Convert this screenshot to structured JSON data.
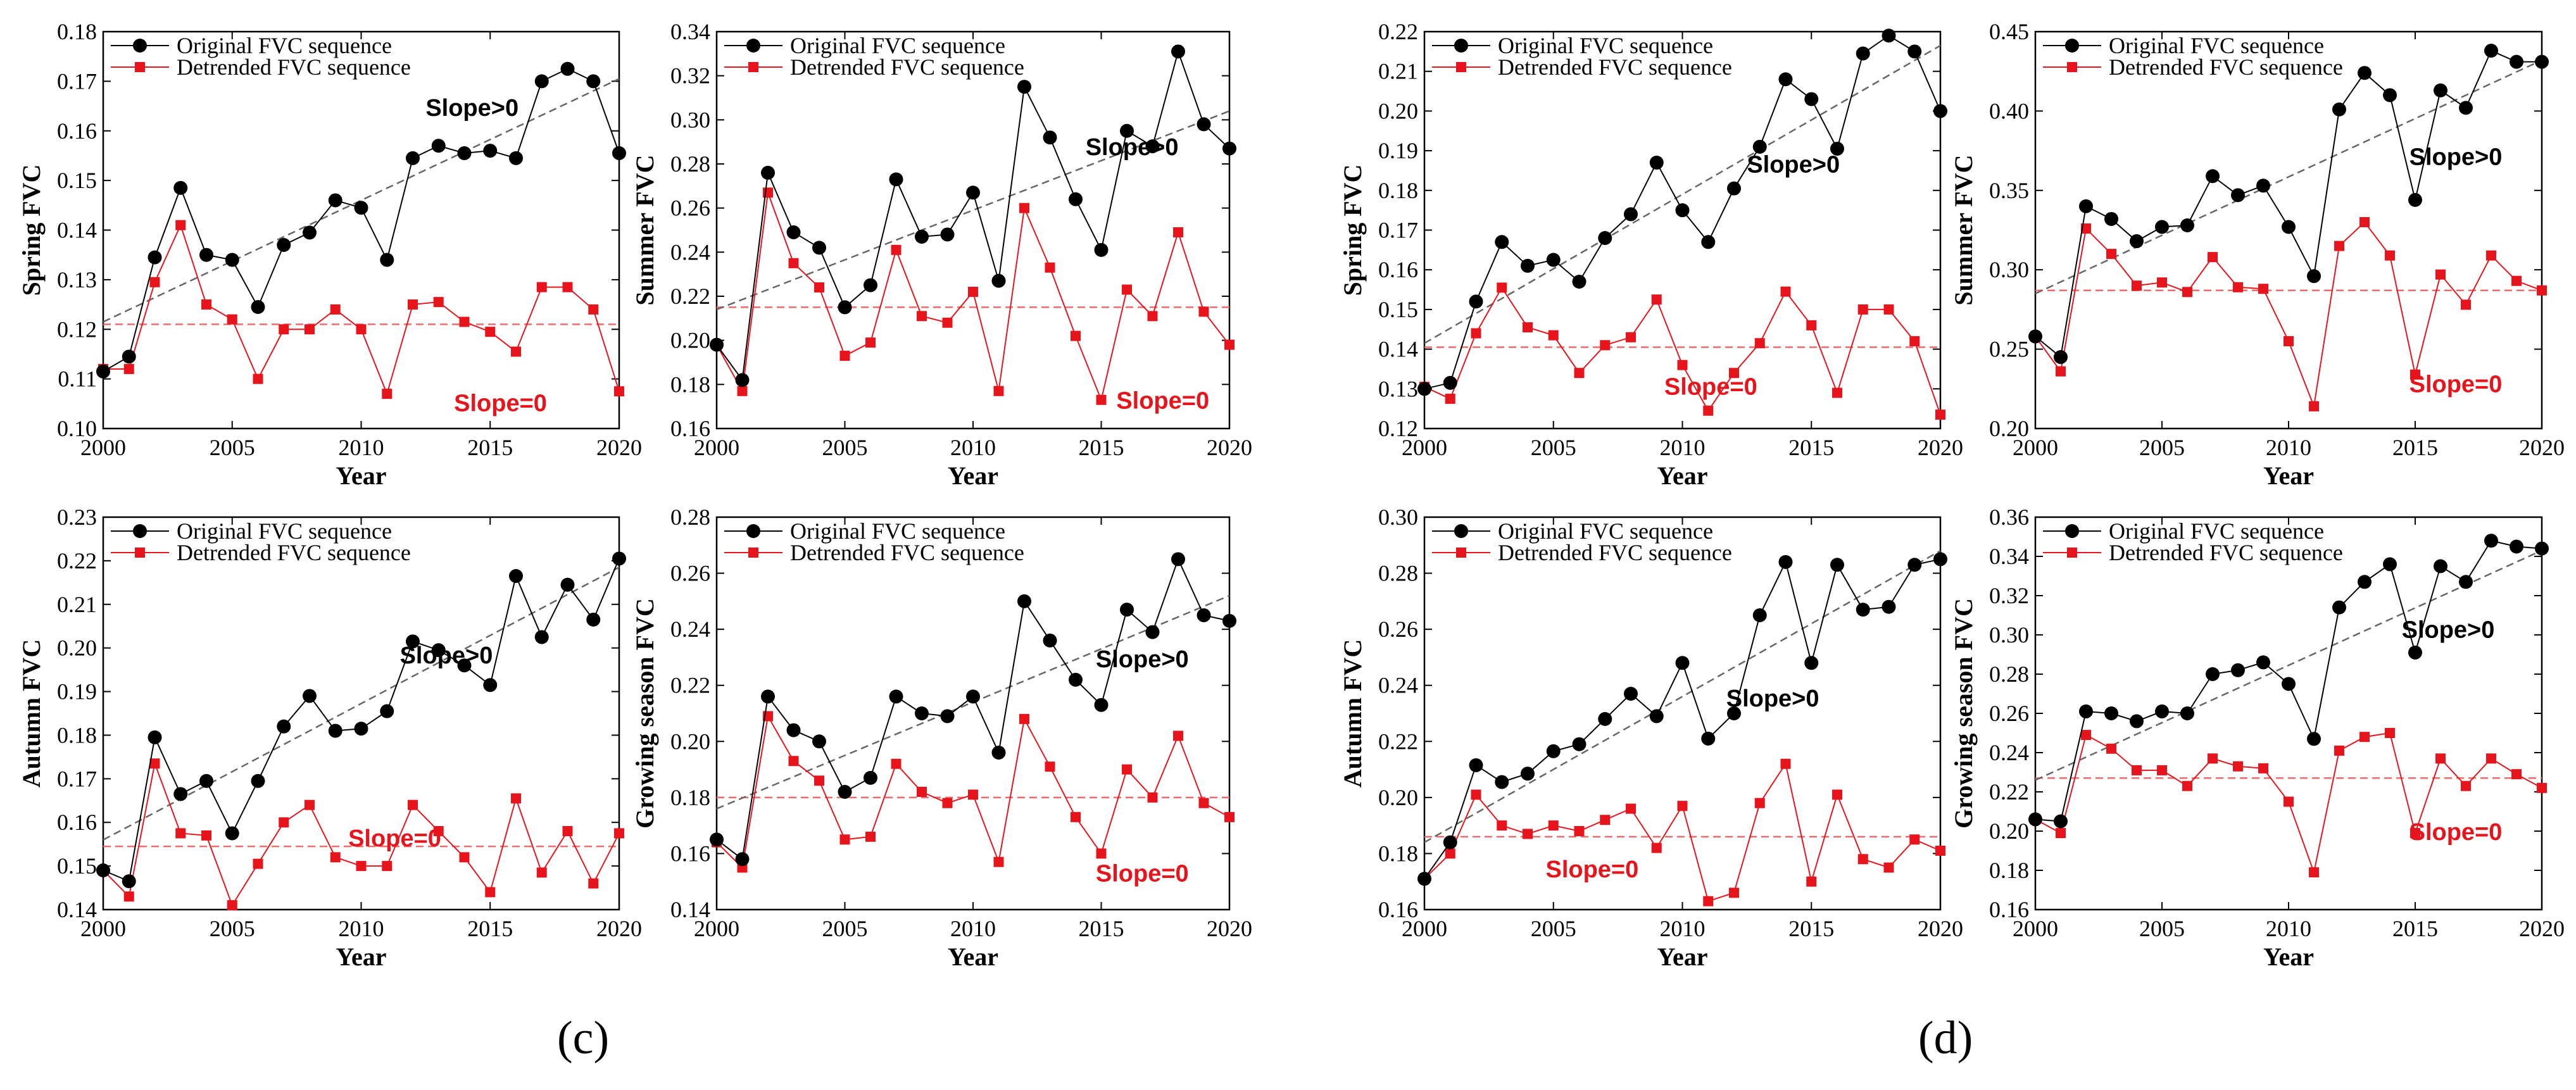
{
  "legend": {
    "original": "Original FVC sequence",
    "detrended": "Detrended FVC sequence"
  },
  "colors": {
    "original": "#000000",
    "detrended": "#e8141b",
    "trend_original": "#666666",
    "trend_detrended": "#ef6b6b"
  },
  "panel_labels": {
    "c": "(c)",
    "d": "(d)"
  },
  "chart_data": [
    {
      "id": "c-spring",
      "type": "line",
      "xlabel": "Year",
      "ylabel": "Spring FVC",
      "xlim": [
        2000,
        2020
      ],
      "ylim": [
        0.1,
        0.18
      ],
      "xticks": [
        2000,
        2005,
        2010,
        2015,
        2020
      ],
      "yticks": [
        "0.10",
        "0.11",
        "0.12",
        "0.13",
        "0.14",
        "0.15",
        "0.16",
        "0.17",
        "0.18"
      ],
      "x": [
        2000,
        2001,
        2002,
        2003,
        2004,
        2005,
        2006,
        2007,
        2008,
        2009,
        2010,
        2011,
        2012,
        2013,
        2014,
        2015,
        2016,
        2017,
        2018,
        2019,
        2020
      ],
      "series": [
        {
          "key": "original",
          "values": [
            0.1115,
            0.1145,
            0.1345,
            0.1485,
            0.135,
            0.134,
            0.1245,
            0.137,
            0.1395,
            0.146,
            0.1445,
            0.134,
            0.1545,
            0.157,
            0.1555,
            0.156,
            0.1545,
            0.17,
            0.1725,
            0.17,
            0.1555
          ]
        },
        {
          "key": "detrended",
          "values": [
            0.112,
            0.112,
            0.1295,
            0.141,
            0.125,
            0.122,
            0.11,
            0.12,
            0.12,
            0.124,
            0.12,
            0.107,
            0.125,
            0.1255,
            0.1215,
            0.1195,
            0.1155,
            0.1285,
            0.1285,
            0.124,
            0.1075
          ]
        }
      ],
      "trend_original": [
        0.1215,
        0.1705
      ],
      "trend_detrended": [
        0.121,
        0.121
      ],
      "annotations": [
        {
          "text": "Slope>0",
          "x": 2014.3,
          "y": 0.163,
          "color": "#000000"
        },
        {
          "text": "Slope=0",
          "x": 2015.4,
          "y": 0.1035,
          "color": "#e8141b"
        }
      ]
    },
    {
      "id": "c-summer",
      "type": "line",
      "xlabel": "Year",
      "ylabel": "Summer FVC",
      "xlim": [
        2000,
        2020
      ],
      "ylim": [
        0.16,
        0.34
      ],
      "xticks": [
        2000,
        2005,
        2010,
        2015,
        2020
      ],
      "yticks": [
        "0.16",
        "0.18",
        "0.20",
        "0.22",
        "0.24",
        "0.26",
        "0.28",
        "0.30",
        "0.32",
        "0.34"
      ],
      "x": [
        2000,
        2001,
        2002,
        2003,
        2004,
        2005,
        2006,
        2007,
        2008,
        2009,
        2010,
        2011,
        2012,
        2013,
        2014,
        2015,
        2016,
        2017,
        2018,
        2019,
        2020
      ],
      "series": [
        {
          "key": "original",
          "values": [
            0.198,
            0.182,
            0.276,
            0.249,
            0.242,
            0.215,
            0.225,
            0.273,
            0.247,
            0.248,
            0.267,
            0.227,
            0.315,
            0.292,
            0.264,
            0.241,
            0.295,
            0.288,
            0.331,
            0.298,
            0.287
          ]
        },
        {
          "key": "detrended",
          "values": [
            0.198,
            0.177,
            0.267,
            0.235,
            0.224,
            0.193,
            0.199,
            0.241,
            0.211,
            0.208,
            0.222,
            0.177,
            0.26,
            0.233,
            0.202,
            0.173,
            0.223,
            0.211,
            0.249,
            0.213,
            0.198
          ]
        }
      ],
      "trend_original": [
        0.214,
        0.304
      ],
      "trend_detrended": [
        0.215,
        0.215
      ],
      "annotations": [
        {
          "text": "Slope>0",
          "x": 2016.2,
          "y": 0.284,
          "color": "#000000"
        },
        {
          "text": "Slope=0",
          "x": 2017.4,
          "y": 0.169,
          "color": "#e8141b"
        }
      ]
    },
    {
      "id": "c-autumn",
      "type": "line",
      "xlabel": "Year",
      "ylabel": "Autumn FVC",
      "xlim": [
        2000,
        2020
      ],
      "ylim": [
        0.14,
        0.23
      ],
      "xticks": [
        2000,
        2005,
        2010,
        2015,
        2020
      ],
      "yticks": [
        "0.14",
        "0.15",
        "0.16",
        "0.17",
        "0.18",
        "0.19",
        "0.20",
        "0.21",
        "0.22",
        "0.23"
      ],
      "x": [
        2000,
        2001,
        2002,
        2003,
        2004,
        2005,
        2006,
        2007,
        2008,
        2009,
        2010,
        2011,
        2012,
        2013,
        2014,
        2015,
        2016,
        2017,
        2018,
        2019,
        2020
      ],
      "series": [
        {
          "key": "original",
          "values": [
            0.149,
            0.1465,
            0.1795,
            0.1665,
            0.1695,
            0.1575,
            0.1695,
            0.182,
            0.189,
            0.181,
            0.1815,
            0.1855,
            0.2015,
            0.1995,
            0.196,
            0.1915,
            0.2165,
            0.2025,
            0.2145,
            0.2065,
            0.2205
          ]
        },
        {
          "key": "detrended",
          "values": [
            0.149,
            0.143,
            0.1735,
            0.1575,
            0.157,
            0.141,
            0.1505,
            0.16,
            0.164,
            0.152,
            0.15,
            0.15,
            0.164,
            0.158,
            0.152,
            0.144,
            0.1655,
            0.1485,
            0.158,
            0.146,
            0.1575
          ]
        }
      ],
      "trend_original": [
        0.156,
        0.2185
      ],
      "trend_detrended": [
        0.1545,
        0.1545
      ],
      "annotations": [
        {
          "text": "Slope>0",
          "x": 2013.3,
          "y": 0.1965,
          "color": "#000000"
        },
        {
          "text": "Slope=0",
          "x": 2011.3,
          "y": 0.1545,
          "color": "#e8141b"
        }
      ]
    },
    {
      "id": "c-growing",
      "type": "line",
      "xlabel": "Year",
      "ylabel": "Growing season FVC",
      "xlim": [
        2000,
        2020
      ],
      "ylim": [
        0.14,
        0.28
      ],
      "xticks": [
        2000,
        2005,
        2010,
        2015,
        2020
      ],
      "yticks": [
        "0.14",
        "0.16",
        "0.18",
        "0.20",
        "0.22",
        "0.24",
        "0.26",
        "0.28"
      ],
      "x": [
        2000,
        2001,
        2002,
        2003,
        2004,
        2005,
        2006,
        2007,
        2008,
        2009,
        2010,
        2011,
        2012,
        2013,
        2014,
        2015,
        2016,
        2017,
        2018,
        2019,
        2020
      ],
      "series": [
        {
          "key": "original",
          "values": [
            0.165,
            0.158,
            0.216,
            0.204,
            0.2,
            0.182,
            0.187,
            0.216,
            0.21,
            0.209,
            0.216,
            0.196,
            0.25,
            0.236,
            0.222,
            0.213,
            0.247,
            0.239,
            0.265,
            0.245,
            0.243
          ]
        },
        {
          "key": "detrended",
          "values": [
            0.164,
            0.155,
            0.209,
            0.193,
            0.186,
            0.165,
            0.166,
            0.192,
            0.182,
            0.178,
            0.181,
            0.157,
            0.208,
            0.191,
            0.173,
            0.16,
            0.19,
            0.18,
            0.202,
            0.178,
            0.173
          ]
        }
      ],
      "trend_original": [
        0.176,
        0.252
      ],
      "trend_detrended": [
        0.18,
        0.18
      ],
      "annotations": [
        {
          "text": "Slope>0",
          "x": 2016.6,
          "y": 0.2265,
          "color": "#000000"
        },
        {
          "text": "Slope=0",
          "x": 2016.6,
          "y": 0.15,
          "color": "#e8141b"
        }
      ]
    },
    {
      "id": "d-spring",
      "type": "line",
      "xlabel": "Year",
      "ylabel": "Spring FVC",
      "xlim": [
        2000,
        2020
      ],
      "ylim": [
        0.12,
        0.22
      ],
      "xticks": [
        2000,
        2005,
        2010,
        2015,
        2020
      ],
      "yticks": [
        "0.12",
        "0.13",
        "0.14",
        "0.15",
        "0.16",
        "0.17",
        "0.18",
        "0.19",
        "0.20",
        "0.21",
        "0.22"
      ],
      "x": [
        2000,
        2001,
        2002,
        2003,
        2004,
        2005,
        2006,
        2007,
        2008,
        2009,
        2010,
        2011,
        2012,
        2013,
        2014,
        2015,
        2016,
        2017,
        2018,
        2019,
        2020
      ],
      "series": [
        {
          "key": "original",
          "values": [
            0.13,
            0.1315,
            0.152,
            0.167,
            0.161,
            0.1625,
            0.157,
            0.168,
            0.174,
            0.187,
            0.175,
            0.167,
            0.1805,
            0.191,
            0.208,
            0.203,
            0.1905,
            0.2145,
            0.219,
            0.215,
            0.2
          ]
        },
        {
          "key": "detrended",
          "values": [
            0.1305,
            0.1275,
            0.144,
            0.1555,
            0.1455,
            0.1435,
            0.134,
            0.141,
            0.143,
            0.1525,
            0.136,
            0.1245,
            0.134,
            0.1415,
            0.1545,
            0.146,
            0.129,
            0.15,
            0.15,
            0.142,
            0.1235
          ]
        }
      ],
      "trend_original": [
        0.1415,
        0.2165
      ],
      "trend_detrended": [
        0.1405,
        0.1405
      ],
      "annotations": [
        {
          "text": "Slope>0",
          "x": 2014.3,
          "y": 0.1845,
          "color": "#000000"
        },
        {
          "text": "Slope=0",
          "x": 2011.1,
          "y": 0.1285,
          "color": "#e8141b"
        }
      ]
    },
    {
      "id": "d-summer",
      "type": "line",
      "xlabel": "Year",
      "ylabel": "Summer FVC",
      "xlim": [
        2000,
        2020
      ],
      "ylim": [
        0.2,
        0.45
      ],
      "xticks": [
        2000,
        2005,
        2010,
        2015,
        2020
      ],
      "yticks": [
        "0.20",
        "0.25",
        "0.30",
        "0.35",
        "0.40",
        "0.45"
      ],
      "x": [
        2000,
        2001,
        2002,
        2003,
        2004,
        2005,
        2006,
        2007,
        2008,
        2009,
        2010,
        2011,
        2012,
        2013,
        2014,
        2015,
        2016,
        2017,
        2018,
        2019,
        2020
      ],
      "series": [
        {
          "key": "original",
          "values": [
            0.258,
            0.245,
            0.34,
            0.332,
            0.318,
            0.327,
            0.328,
            0.359,
            0.347,
            0.353,
            0.327,
            0.296,
            0.401,
            0.424,
            0.41,
            0.344,
            0.413,
            0.402,
            0.438,
            0.431,
            0.431
          ]
        },
        {
          "key": "detrended",
          "values": [
            0.258,
            0.236,
            0.326,
            0.31,
            0.29,
            0.292,
            0.286,
            0.308,
            0.289,
            0.288,
            0.255,
            0.214,
            0.315,
            0.33,
            0.309,
            0.234,
            0.297,
            0.278,
            0.309,
            0.293,
            0.287
          ]
        }
      ],
      "trend_original": [
        0.285,
        0.432
      ],
      "trend_detrended": [
        0.287,
        0.287
      ],
      "annotations": [
        {
          "text": "Slope>0",
          "x": 2016.6,
          "y": 0.366,
          "color": "#000000"
        },
        {
          "text": "Slope=0",
          "x": 2016.6,
          "y": 0.223,
          "color": "#e8141b"
        }
      ]
    },
    {
      "id": "d-autumn",
      "type": "line",
      "xlabel": "Year",
      "ylabel": "Autumn FVC",
      "xlim": [
        2000,
        2020
      ],
      "ylim": [
        0.16,
        0.3
      ],
      "xticks": [
        2000,
        2005,
        2010,
        2015,
        2020
      ],
      "yticks": [
        "0.16",
        "0.18",
        "0.20",
        "0.22",
        "0.24",
        "0.26",
        "0.28",
        "0.30"
      ],
      "x": [
        2000,
        2001,
        2002,
        2003,
        2004,
        2005,
        2006,
        2007,
        2008,
        2009,
        2010,
        2011,
        2012,
        2013,
        2014,
        2015,
        2016,
        2017,
        2018,
        2019,
        2020
      ],
      "series": [
        {
          "key": "original",
          "values": [
            0.171,
            0.184,
            0.2115,
            0.2055,
            0.2085,
            0.2165,
            0.219,
            0.228,
            0.237,
            0.229,
            0.248,
            0.221,
            0.23,
            0.265,
            0.284,
            0.248,
            0.283,
            0.267,
            0.268,
            0.283,
            0.285
          ]
        },
        {
          "key": "detrended",
          "values": [
            0.171,
            0.18,
            0.201,
            0.19,
            0.187,
            0.19,
            0.188,
            0.192,
            0.196,
            0.182,
            0.197,
            0.163,
            0.166,
            0.198,
            0.212,
            0.17,
            0.201,
            0.178,
            0.175,
            0.185,
            0.181
          ]
        }
      ],
      "trend_original": [
        0.184,
        0.288
      ],
      "trend_detrended": [
        0.186,
        0.186
      ],
      "annotations": [
        {
          "text": "Slope>0",
          "x": 2013.5,
          "y": 0.2325,
          "color": "#000000"
        },
        {
          "text": "Slope=0",
          "x": 2006.5,
          "y": 0.1715,
          "color": "#e8141b"
        }
      ]
    },
    {
      "id": "d-growing",
      "type": "line",
      "xlabel": "Year",
      "ylabel": "Growing season FVC",
      "xlim": [
        2000,
        2020
      ],
      "ylim": [
        0.16,
        0.36
      ],
      "xticks": [
        2000,
        2005,
        2010,
        2015,
        2020
      ],
      "yticks": [
        "0.16",
        "0.18",
        "0.20",
        "0.22",
        "0.24",
        "0.26",
        "0.28",
        "0.30",
        "0.32",
        "0.34",
        "0.36"
      ],
      "x": [
        2000,
        2001,
        2002,
        2003,
        2004,
        2005,
        2006,
        2007,
        2008,
        2009,
        2010,
        2011,
        2012,
        2013,
        2014,
        2015,
        2016,
        2017,
        2018,
        2019,
        2020
      ],
      "series": [
        {
          "key": "original",
          "values": [
            0.206,
            0.205,
            0.261,
            0.26,
            0.256,
            0.261,
            0.26,
            0.28,
            0.282,
            0.286,
            0.275,
            0.247,
            0.314,
            0.327,
            0.336,
            0.291,
            0.335,
            0.327,
            0.348,
            0.345,
            0.344
          ]
        },
        {
          "key": "detrended",
          "values": [
            0.206,
            0.199,
            0.249,
            0.242,
            0.231,
            0.231,
            0.223,
            0.237,
            0.233,
            0.232,
            0.215,
            0.179,
            0.241,
            0.248,
            0.25,
            0.199,
            0.237,
            0.223,
            0.237,
            0.229,
            0.222
          ]
        }
      ],
      "trend_original": [
        0.226,
        0.343
      ],
      "trend_detrended": [
        0.227,
        0.227
      ],
      "annotations": [
        {
          "text": "Slope>0",
          "x": 2016.3,
          "y": 0.2985,
          "color": "#000000"
        },
        {
          "text": "Slope=0",
          "x": 2016.6,
          "y": 0.1955,
          "color": "#e8141b"
        }
      ]
    }
  ]
}
